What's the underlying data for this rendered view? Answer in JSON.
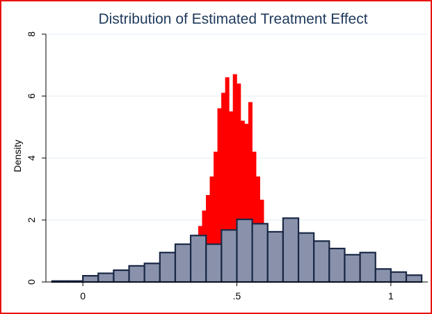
{
  "chart_data": {
    "type": "bar",
    "title": "Distribution of Estimated Treatment Effect",
    "xlabel": "",
    "ylabel": "Density",
    "xlim": [
      -0.12,
      1.12
    ],
    "ylim": [
      0,
      8
    ],
    "x_ticks": [
      {
        "value": 0,
        "label": "0"
      },
      {
        "value": 0.5,
        "label": ".5"
      },
      {
        "value": 1,
        "label": "1"
      }
    ],
    "y_ticks": [
      {
        "value": 0,
        "label": "0"
      },
      {
        "value": 2,
        "label": "2"
      },
      {
        "value": 4,
        "label": "4"
      },
      {
        "value": 6,
        "label": "6"
      },
      {
        "value": 8,
        "label": "8"
      }
    ],
    "grid": true,
    "series": [
      {
        "color": "#ff0000",
        "style": "filled-step",
        "bin_width": 0.0125,
        "bin_starts": [
          0.3625,
          0.375,
          0.3875,
          0.4,
          0.4125,
          0.425,
          0.4375,
          0.45,
          0.4625,
          0.475,
          0.4875,
          0.5,
          0.5125,
          0.525,
          0.5375,
          0.55,
          0.5625,
          0.575,
          0.5875
        ],
        "values": [
          0.4,
          1.8,
          2.3,
          2.8,
          3.4,
          4.2,
          5.6,
          6.1,
          6.6,
          5.5,
          6.7,
          6.4,
          5.2,
          5.1,
          5.8,
          4.2,
          3.4,
          2.65,
          0.6
        ]
      },
      {
        "color": "#8a92ab",
        "edge_color": "#1a2845",
        "style": "bars",
        "bin_width": 0.05,
        "bin_starts": [
          -0.1,
          -0.05,
          0,
          0.05,
          0.1,
          0.15,
          0.2,
          0.25,
          0.3,
          0.35,
          0.4,
          0.45,
          0.5,
          0.55,
          0.6,
          0.65,
          0.7,
          0.75,
          0.8,
          0.85,
          0.9,
          0.95,
          1.0,
          1.05
        ],
        "values": [
          0.03,
          0.03,
          0.2,
          0.28,
          0.38,
          0.52,
          0.6,
          0.95,
          1.22,
          1.5,
          1.22,
          1.68,
          2.02,
          1.88,
          1.62,
          2.06,
          1.58,
          1.32,
          1.08,
          0.88,
          0.95,
          0.42,
          0.32,
          0.22
        ]
      }
    ]
  }
}
